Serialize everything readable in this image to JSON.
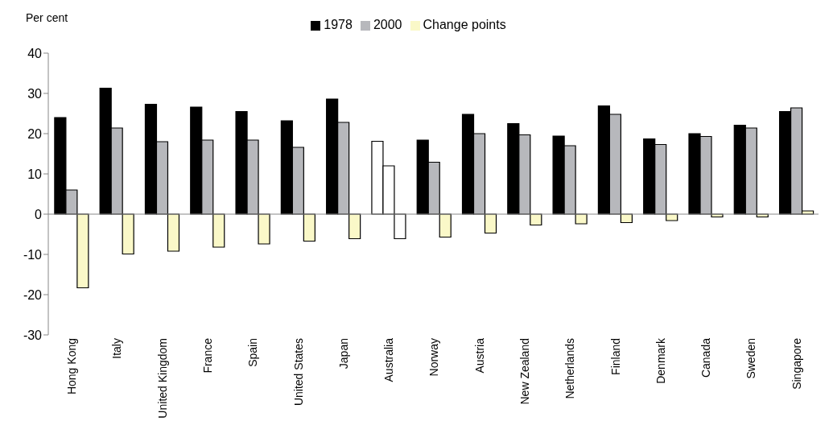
{
  "chart_data": {
    "type": "bar",
    "ylabel": "Per cent",
    "categories": [
      "Hong Kong",
      "Italy",
      "United Kingdom",
      "France",
      "Spain",
      "United States",
      "Japan",
      "Australia",
      "Norway",
      "Austria",
      "New Zealand",
      "Netherlands",
      "Finland",
      "Denmark",
      "Canada",
      "Sweden",
      "Singapore"
    ],
    "series": [
      {
        "name": "1978",
        "color": "#000000",
        "colors": [
          "#000000",
          "#000000",
          "#000000",
          "#000000",
          "#000000",
          "#000000",
          "#000000",
          "#ffffff",
          "#000000",
          "#000000",
          "#000000",
          "#000000",
          "#000000",
          "#000000",
          "#000000",
          "#000000",
          "#000000"
        ],
        "values": [
          24,
          31.3,
          27.3,
          26.6,
          25.5,
          23.2,
          28.6,
          18.1,
          18.4,
          24.8,
          22.5,
          19.4,
          26.9,
          18.7,
          20,
          22.1,
          25.5
        ]
      },
      {
        "name": "2000",
        "color": "#b7b8bc",
        "colors": [
          "#b7b8bc",
          "#b7b8bc",
          "#b7b8bc",
          "#b7b8bc",
          "#b7b8bc",
          "#b7b8bc",
          "#b7b8bc",
          "#ffffff",
          "#b7b8bc",
          "#b7b8bc",
          "#b7b8bc",
          "#b7b8bc",
          "#b7b8bc",
          "#b7b8bc",
          "#b7b8bc",
          "#b7b8bc",
          "#b7b8bc"
        ],
        "values": [
          6,
          21.4,
          18,
          18.4,
          18.4,
          16.6,
          22.8,
          12,
          12.9,
          20,
          19.7,
          17,
          24.8,
          17.3,
          19.3,
          21.4,
          26.4
        ]
      },
      {
        "name": "Change points",
        "color": "#faf8c8",
        "colors": [
          "#faf8c8",
          "#faf8c8",
          "#faf8c8",
          "#faf8c8",
          "#faf8c8",
          "#faf8c8",
          "#faf8c8",
          "#ffffff",
          "#faf8c8",
          "#faf8c8",
          "#faf8c8",
          "#faf8c8",
          "#faf8c8",
          "#faf8c8",
          "#faf8c8",
          "#faf8c8",
          "#faf8c8"
        ],
        "values": [
          -18.3,
          -9.9,
          -9.2,
          -8.2,
          -7.4,
          -6.7,
          -6.1,
          -6.1,
          -5.7,
          -4.7,
          -2.7,
          -2.4,
          -2.1,
          -1.6,
          -0.7,
          -0.7,
          0.8
        ]
      }
    ],
    "ylim": [
      -30,
      40
    ],
    "yticks": [
      -30,
      -20,
      -10,
      0,
      10,
      20,
      30,
      40
    ],
    "ref_lines": [
      {
        "axis": "y",
        "value": 0,
        "color": "#888888"
      }
    ],
    "legend": "top"
  }
}
